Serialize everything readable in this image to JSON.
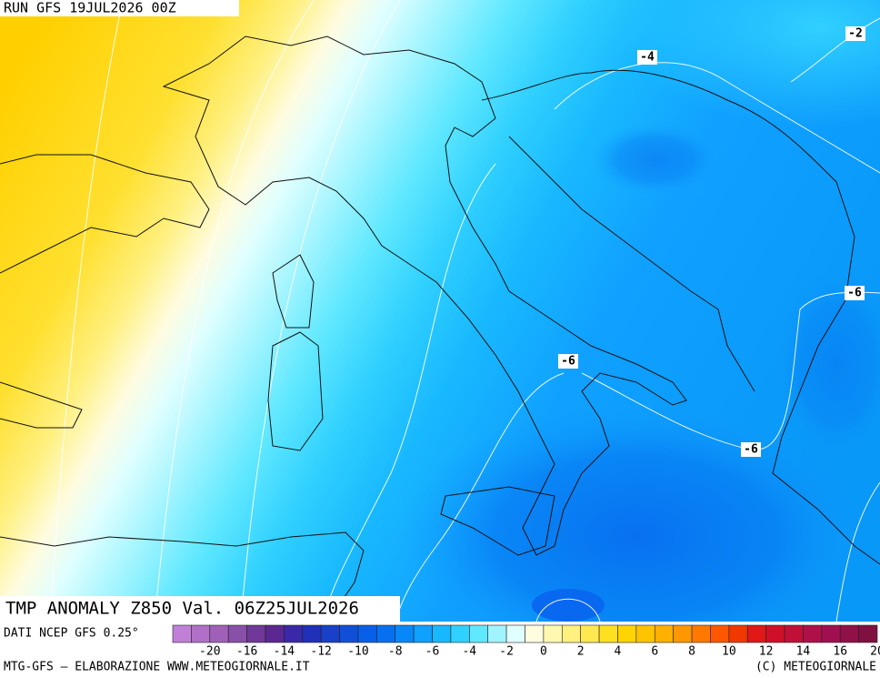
{
  "header": {
    "run": "RUN GFS 19JUL2026 00Z"
  },
  "contour_labels": [
    "-2",
    "-4",
    "-6",
    "-6",
    "-6"
  ],
  "title": "TMP ANOMALY Z850 Val. 06Z25JUL2026",
  "source": "DATI NCEP GFS 0.25°",
  "colorbar": {
    "labels": [
      "-20",
      "-16",
      "-14",
      "-12",
      "-10",
      "-8",
      "-6",
      "-4",
      "-2",
      "0",
      "2",
      "4",
      "6",
      "8",
      "10",
      "12",
      "14",
      "16",
      "20"
    ],
    "colors": [
      "#c080d8",
      "#b070c8",
      "#a060b8",
      "#8850a8",
      "#703898",
      "#5a2890",
      "#3a28a8",
      "#2030b8",
      "#1840c8",
      "#1050d8",
      "#0860e8",
      "#0870f0",
      "#0888f8",
      "#10a0ff",
      "#18b8ff",
      "#30d0ff",
      "#60e8ff",
      "#a0f4ff",
      "#e0ffff",
      "#fffce0",
      "#fff8b0",
      "#fff080",
      "#ffe850",
      "#ffe020",
      "#ffd400",
      "#ffc400",
      "#ffb000",
      "#ff9800",
      "#ff7800",
      "#ff5800",
      "#f03800",
      "#e01818",
      "#d01028",
      "#c01038",
      "#b01048",
      "#a01050",
      "#901048",
      "#801040"
    ]
  },
  "footer": {
    "left": "MTG-GFS — ELABORAZIONE WWW.METEOGIORNALE.IT",
    "right": "(C) METEOGIORNALE"
  }
}
